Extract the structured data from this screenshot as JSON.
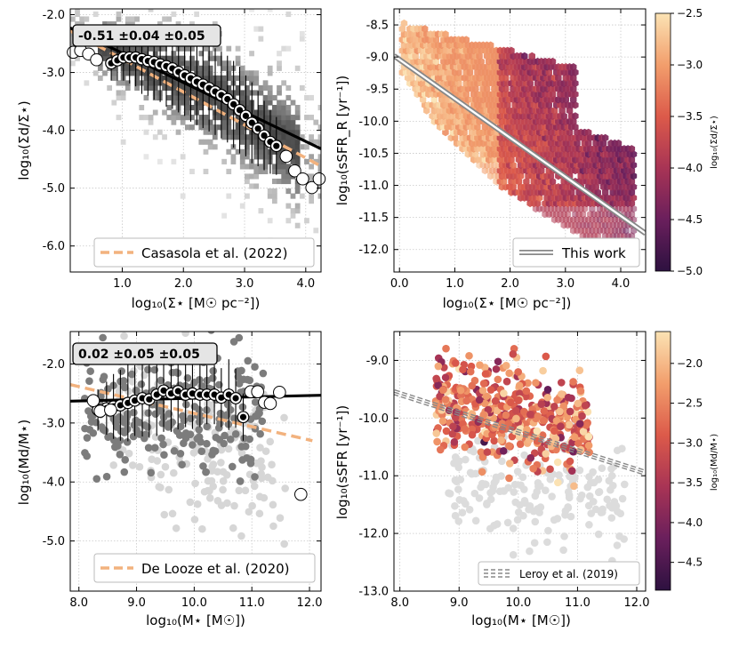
{
  "chart_data": [
    {
      "id": "p1",
      "type": "scatter",
      "xlabel": "log₁₀(Σ⋆  [M☉ pc⁻²])",
      "ylabel": "log₁₀(Σd/Σ⋆)",
      "xlim": [
        0.15,
        4.25
      ],
      "ylim": [
        -6.45,
        -1.9
      ],
      "xticks": [
        1.0,
        2.0,
        3.0,
        4.0
      ],
      "xtick_labels": [
        "1.0",
        "2.0",
        "3.0",
        "4.0"
      ],
      "yticks": [
        -2,
        -3,
        -4,
        -5,
        -6
      ],
      "ytick_labels": [
        "-2.0",
        "-3.0",
        "-4.0",
        "-5.0",
        "-6.0"
      ],
      "stat_label": "-0.51 ±0.04 ±0.05",
      "legend": "Casasola et al. (2022)",
      "fit_line": {
        "x": [
          0.15,
          4.25
        ],
        "y": [
          -2.23,
          -4.32
        ]
      },
      "ref_line": {
        "x": [
          0.15,
          4.25
        ],
        "y": [
          -2.28,
          -4.62
        ]
      },
      "binned_filled": {
        "x": [
          0.82,
          0.92,
          1.02,
          1.12,
          1.22,
          1.32,
          1.42,
          1.52,
          1.62,
          1.72,
          1.82,
          1.92,
          2.02,
          2.12,
          2.22,
          2.32,
          2.42,
          2.52,
          2.62,
          2.72,
          2.82,
          2.92,
          3.02,
          3.12,
          3.22,
          3.32,
          3.42,
          3.52
        ],
        "y": [
          -2.84,
          -2.79,
          -2.74,
          -2.74,
          -2.74,
          -2.77,
          -2.8,
          -2.82,
          -2.86,
          -2.89,
          -2.93,
          -2.99,
          -3.05,
          -3.1,
          -3.16,
          -3.21,
          -3.27,
          -3.33,
          -3.39,
          -3.46,
          -3.55,
          -3.65,
          -3.75,
          -3.87,
          -3.97,
          -4.09,
          -4.2,
          -4.27
        ],
        "err": [
          0.3,
          0.35,
          0.4,
          0.45,
          0.5,
          0.6,
          0.6,
          0.65,
          0.65,
          0.7,
          0.7,
          0.7,
          0.7,
          0.75,
          0.75,
          0.75,
          0.75,
          0.75,
          0.75,
          0.75,
          0.75,
          0.75,
          0.7,
          0.7,
          0.65,
          0.6,
          0.55,
          0.5
        ]
      },
      "binned_open": {
        "x": [
          0.2,
          0.32,
          0.45,
          0.58,
          3.68,
          3.82,
          3.95,
          4.1,
          4.22
        ],
        "y": [
          -2.65,
          -2.62,
          -2.68,
          -2.78,
          -4.45,
          -4.7,
          -4.84,
          -4.99,
          -4.84
        ]
      }
    },
    {
      "id": "p2",
      "type": "heatmap",
      "xlabel": "log₁₀(Σ⋆  [M☉ pc⁻²])",
      "ylabel": "log₁₀(sSFR_R  [yr⁻¹])",
      "xlim": [
        -0.1,
        4.45
      ],
      "ylim": [
        -12.35,
        -8.25
      ],
      "xticks": [
        0,
        1,
        2,
        3,
        4
      ],
      "xtick_labels": [
        "0.0",
        "1.0",
        "2.0",
        "3.0",
        "4.0"
      ],
      "yticks": [
        -8.5,
        -9,
        -9.5,
        -10,
        -10.5,
        -11,
        -11.5,
        -12
      ],
      "ytick_labels": [
        "-8.5",
        "-9.0",
        "-9.5",
        "-10.0",
        "-10.5",
        "-11.0",
        "-11.5",
        "-12.0"
      ],
      "legend": "This work",
      "fit_line": {
        "x": [
          -0.1,
          4.45
        ],
        "y": [
          -8.98,
          -11.75
        ]
      },
      "colorbar": {
        "label": "log₁₀(Σd/Σ⋆)",
        "min": -5.0,
        "max": -2.5,
        "ticks": [
          -2.5,
          -3.0,
          -3.5,
          -4.0,
          -4.5,
          -5.0
        ],
        "tick_labels": [
          "−2.5",
          "−3.0",
          "−3.5",
          "−4.0",
          "−4.5",
          "−5.0"
        ]
      }
    },
    {
      "id": "p3",
      "type": "scatter",
      "xlabel": "log₁₀(M⋆  [M☉])",
      "ylabel": "log₁₀(Md/M⋆)",
      "xlim": [
        7.85,
        12.2
      ],
      "ylim": [
        -5.85,
        -1.45
      ],
      "xticks": [
        8,
        9,
        10,
        11,
        12
      ],
      "xtick_labels": [
        "8.0",
        "9.0",
        "10.0",
        "11.0",
        "12.0"
      ],
      "yticks": [
        -2,
        -3,
        -4,
        -5
      ],
      "ytick_labels": [
        "-2.0",
        "-3.0",
        "-4.0",
        "-5.0"
      ],
      "stat_label": "0.02 ±0.05 ±0.05",
      "legend": "De Looze et al. (2020)",
      "fit_line": {
        "x": [
          7.85,
          12.2
        ],
        "y": [
          -2.63,
          -2.53
        ]
      },
      "ref_line": {
        "x": [
          7.85,
          12.05
        ],
        "y": [
          -2.35,
          -3.3
        ]
      },
      "binned_filled": {
        "x": [
          8.33,
          8.48,
          8.6,
          8.72,
          8.85,
          8.97,
          9.1,
          9.22,
          9.35,
          9.47,
          9.6,
          9.72,
          9.85,
          9.97,
          10.1,
          10.22,
          10.35,
          10.47,
          10.6,
          10.72,
          10.85
        ],
        "y": [
          -2.78,
          -2.75,
          -2.72,
          -2.7,
          -2.66,
          -2.62,
          -2.58,
          -2.6,
          -2.52,
          -2.45,
          -2.5,
          -2.46,
          -2.52,
          -2.5,
          -2.52,
          -2.52,
          -2.52,
          -2.57,
          -2.52,
          -2.58,
          -2.9
        ],
        "err": [
          0.35,
          0.45,
          0.55,
          0.6,
          0.65,
          0.6,
          0.65,
          0.65,
          0.7,
          0.7,
          0.65,
          0.65,
          0.55,
          0.6,
          0.55,
          0.5,
          0.5,
          0.5,
          0.6,
          0.5,
          0.4
        ]
      },
      "binned_open": {
        "x": [
          8.25,
          8.37,
          8.55,
          10.98,
          11.1,
          11.22,
          11.32,
          11.48,
          11.85
        ],
        "y": [
          -2.62,
          -2.8,
          -2.78,
          -2.47,
          -2.47,
          -2.65,
          -2.67,
          -2.48,
          -4.21
        ]
      }
    },
    {
      "id": "p4",
      "type": "scatter",
      "xlabel": "log₁₀(M⋆  [M☉])",
      "ylabel": "log₁₀(sSFR [yr⁻¹])",
      "xlim": [
        7.9,
        12.15
      ],
      "ylim": [
        -13.0,
        -8.5
      ],
      "xticks": [
        8,
        9,
        10,
        11,
        12
      ],
      "xtick_labels": [
        "8.0",
        "9.0",
        "10.0",
        "11.0",
        "12.0"
      ],
      "yticks": [
        -9,
        -10,
        -11,
        -12,
        -13
      ],
      "ytick_labels": [
        "-9.0",
        "-10.0",
        "-11.0",
        "-12.0",
        "-13.0"
      ],
      "legend": "Leroy et al. (2019)",
      "fit_line": {
        "x": [
          7.9,
          12.15
        ],
        "y": [
          -9.55,
          -10.95
        ]
      },
      "colorbar": {
        "label": "log₁₀(Md/M⋆)",
        "min": -4.85,
        "max": -1.6,
        "ticks": [
          -2.0,
          -2.5,
          -3.0,
          -3.5,
          -4.0,
          -4.5
        ],
        "tick_labels": [
          "−2.0",
          "−2.5",
          "−3.0",
          "−3.5",
          "−4.0",
          "−4.5"
        ]
      }
    }
  ]
}
